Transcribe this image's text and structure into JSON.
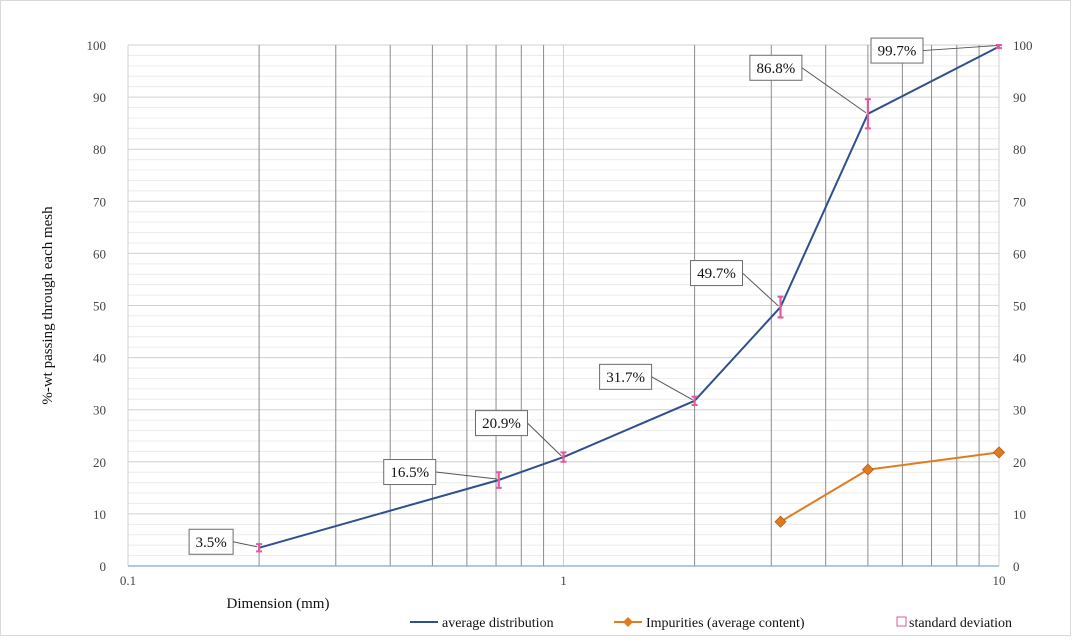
{
  "chart_data": {
    "type": "line",
    "title": "",
    "xlabel": "Dimension (mm)",
    "ylabel": "%-wt passing through each mesh",
    "x_scale": "log",
    "xlim": [
      0.1,
      10
    ],
    "ylim": [
      0,
      100
    ],
    "x_tick_labels": [
      "0.1",
      "1",
      "10"
    ],
    "y_tick_labels": [
      "0",
      "10",
      "20",
      "30",
      "40",
      "50",
      "60",
      "70",
      "80",
      "90",
      "100"
    ],
    "y2_tick_labels": [
      "0",
      "10",
      "20",
      "30",
      "40",
      "50",
      "60",
      "70",
      "80",
      "90",
      "100"
    ],
    "grid": true,
    "legend_position": "bottom",
    "series": [
      {
        "name": "average distribution",
        "color": "#2f4f8f",
        "marker": "none",
        "x": [
          0.2,
          0.71,
          1,
          2,
          3.15,
          5,
          10
        ],
        "y": [
          3.5,
          16.5,
          20.9,
          31.7,
          49.7,
          86.8,
          99.7
        ],
        "labels": [
          "3.5%",
          "16.5%",
          "20.9%",
          "31.7%",
          "49.7%",
          "86.8%",
          "99.7%"
        ],
        "error": [
          0.7,
          1.5,
          0.9,
          0.8,
          2.0,
          2.8,
          0.3
        ]
      },
      {
        "name": "Impurities (average content)",
        "color": "#e07b1f",
        "marker": "diamond",
        "x": [
          3.15,
          5,
          10
        ],
        "y": [
          8.5,
          18.5,
          21.8
        ]
      }
    ],
    "legend": [
      {
        "name": "average distribution",
        "color": "#2f4f8f",
        "style": "line"
      },
      {
        "name": "Impurities (average content)",
        "color": "#e07b1f",
        "style": "line-diamond"
      },
      {
        "name": "standard deviation",
        "color": "#e05aa0",
        "style": "square"
      }
    ]
  }
}
